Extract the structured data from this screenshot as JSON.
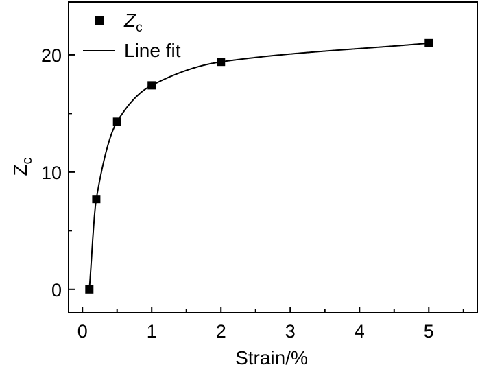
{
  "chart_data": {
    "type": "scatter",
    "xlabel": "Strain/%",
    "ylabel": {
      "main": "Z",
      "sub": "c"
    },
    "xlim": [
      -0.2,
      5.7
    ],
    "ylim": [
      -2,
      24.5
    ],
    "xticks": [
      0,
      1,
      2,
      3,
      4,
      5
    ],
    "yticks": [
      0,
      10,
      20
    ],
    "grid": false,
    "legend_position": "top-left",
    "series": [
      {
        "name": {
          "main": "Z",
          "sub": "c"
        },
        "kind": "points",
        "marker": "square",
        "color": "#000000",
        "x": [
          0.1,
          0.2,
          0.5,
          1,
          2,
          5
        ],
        "y": [
          0,
          7.7,
          14.3,
          17.4,
          19.4,
          21.0
        ]
      },
      {
        "name": "Line fit",
        "kind": "line",
        "color": "#000000"
      }
    ]
  }
}
